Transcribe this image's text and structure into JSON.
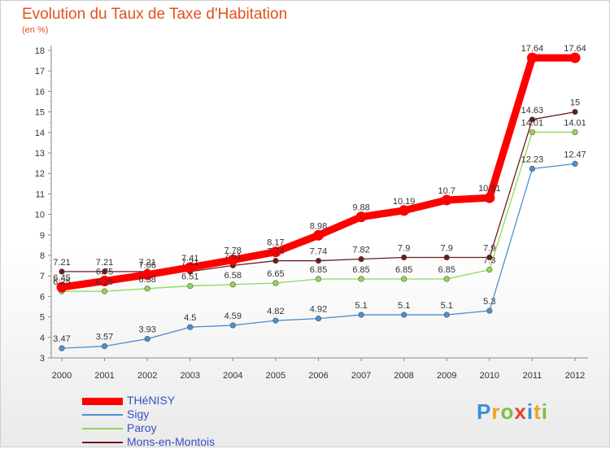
{
  "title": "Evolution du Taux de Taxe d'Habitation",
  "subtitle": "(en %)",
  "logo": {
    "letters": [
      "P",
      "r",
      "o",
      "x",
      "i",
      "t",
      "i"
    ],
    "colors": [
      "#3a8fd9",
      "#f2a127",
      "#7bc043",
      "#e8402a",
      "#3a8fd9",
      "#f2a127",
      "#7bc043"
    ]
  },
  "chart_data": {
    "type": "line",
    "title": "Evolution du Taux de Taxe d'Habitation",
    "ylabel": "(en %)",
    "xlabel": "",
    "ylim": [
      3,
      18
    ],
    "yticks": [
      3,
      4,
      5,
      6,
      7,
      8,
      9,
      10,
      11,
      12,
      13,
      14,
      15,
      16,
      17,
      18
    ],
    "categories": [
      "2000",
      "2001",
      "2002",
      "2003",
      "2004",
      "2005",
      "2006",
      "2007",
      "2008",
      "2009",
      "2010",
      "2011",
      "2012"
    ],
    "grid": false,
    "legend_position": "bottom-left",
    "series": [
      {
        "name": "THéNISY",
        "color": "#ff0000",
        "values": [
          6.45,
          6.75,
          7.06,
          7.41,
          7.78,
          8.17,
          8.98,
          9.88,
          10.19,
          10.7,
          10.81,
          17.64,
          17.64
        ],
        "labels": [
          "6.45",
          "6.75",
          "7.06",
          "7.41",
          "7.78",
          "8.17",
          "8.98",
          "9.88",
          "10.19",
          "10.7",
          "10.81",
          "17.64",
          "17.64"
        ]
      },
      {
        "name": "Sigy",
        "color": "#4b8fd0",
        "values": [
          3.47,
          3.57,
          3.93,
          4.5,
          4.59,
          4.82,
          4.92,
          5.1,
          5.1,
          5.1,
          5.3,
          12.23,
          12.47
        ],
        "labels": [
          "3.47",
          "3.57",
          "3.93",
          "4.5",
          "4.59",
          "4.82",
          "4.92",
          "5.1",
          "5.1",
          "5.1",
          "5.3",
          "12.23",
          "12.47"
        ]
      },
      {
        "name": "Paroy",
        "color": "#8fd855",
        "values": [
          6.25,
          6.25,
          6.38,
          6.51,
          6.58,
          6.65,
          6.85,
          6.85,
          6.85,
          6.85,
          7.3,
          14.01,
          14.01
        ],
        "labels": [
          "6.25",
          "6.25",
          "6.38",
          "6.51",
          "6.58",
          "6.65",
          "6.85",
          "6.85",
          "6.85",
          "6.85",
          "7.3",
          "14.01",
          "14.01"
        ]
      },
      {
        "name": "Mons-en-Montois",
        "color": "#6b1c1c",
        "values": [
          7.21,
          7.21,
          7.21,
          7.21,
          7.51,
          7.74,
          7.74,
          7.82,
          7.9,
          7.9,
          7.9,
          14.63,
          15
        ],
        "labels": [
          "7.21",
          "7.21",
          "7.21",
          "7.21",
          "7.51",
          "7.74",
          "7.74",
          "7.82",
          "7.9",
          "7.9",
          "7.9",
          "14.63",
          "15"
        ]
      }
    ]
  }
}
